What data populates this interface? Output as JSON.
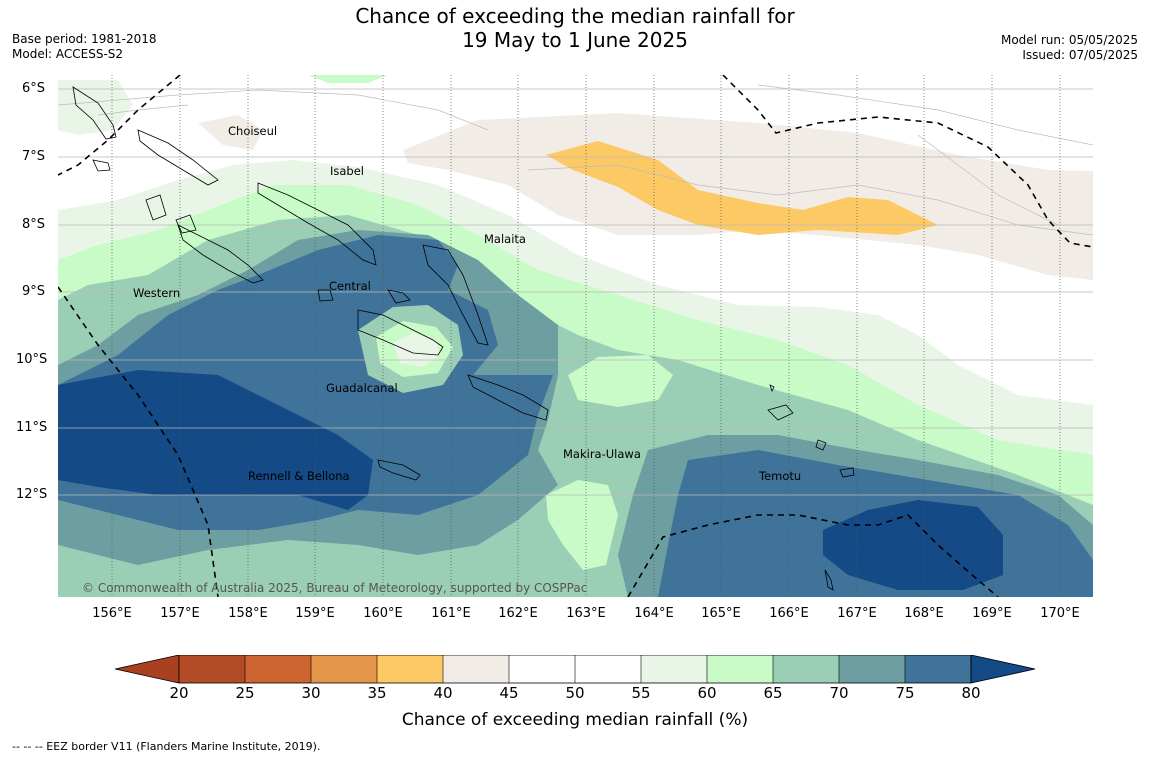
{
  "header": {
    "title_line1": "Chance of exceeding the median rainfall for",
    "title_line2": "19 May to 1 June 2025",
    "base_period": "Base period: 1981-2018",
    "model": "Model: ACCESS-S2",
    "model_run": "Model run: 05/05/2025",
    "issued": "Issued: 07/05/2025"
  },
  "map": {
    "lat_labels": [
      "6°S",
      "7°S",
      "8°S",
      "9°S",
      "10°S",
      "11°S",
      "12°S"
    ],
    "lon_labels": [
      "156°E",
      "157°E",
      "158°E",
      "159°E",
      "160°E",
      "161°E",
      "162°E",
      "163°E",
      "164°E",
      "165°E",
      "166°E",
      "167°E",
      "168°E",
      "169°E",
      "170°E"
    ],
    "provinces": [
      "Choiseul",
      "Isabel",
      "Malaita",
      "Western",
      "Central",
      "Guadalcanal",
      "Makira-Ulawa",
      "Temotu",
      "Rennell & Bellona"
    ],
    "copyright": "© Commonwealth of Australia 2025, Bureau of Meteorology, supported by COSPPac"
  },
  "colorbar": {
    "ticks": [
      "20",
      "25",
      "30",
      "35",
      "40",
      "45",
      "50",
      "55",
      "60",
      "65",
      "70",
      "75",
      "80"
    ],
    "colors": [
      "#a9401f",
      "#b34b26",
      "#cc6530",
      "#e3954a",
      "#fdc964",
      "#f2ece6",
      "#ffffff",
      "#ffffff",
      "#e9f5e7",
      "#c9fbc8",
      "#9bcfb5",
      "#6d9ea2",
      "#3f7399",
      "#144a86"
    ],
    "title": "Chance of exceeding median rainfall (%)"
  },
  "footer": {
    "eez_note": "--  --  -- EEZ border V11 (Flanders Marine Institute, 2019)."
  }
}
